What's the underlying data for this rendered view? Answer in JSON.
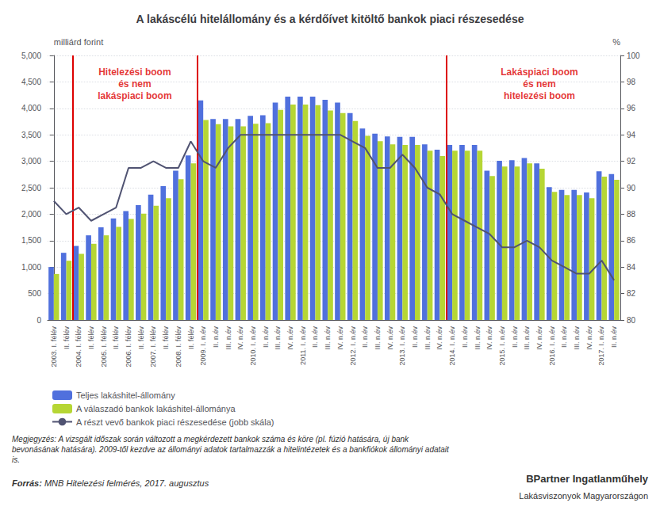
{
  "chart_data": {
    "type": "bar",
    "title": "A lakáscélú hitelállomány és a kérdőívet kitöltő bankok piaci részesedése",
    "y_label": "milliárd forint",
    "y2_label": "%",
    "categories": [
      "2003. I. félév",
      "II. félév",
      "2004. I. félév",
      "II. félév",
      "2005. I. félév",
      "II. félév",
      "2006. I. félév",
      "II. félév",
      "2007. I. félév",
      "II. félév",
      "2008. I. félév",
      "II. félév",
      "2009. I. n.év",
      "II. n.év",
      "III. n.év",
      "IV. n.év",
      "2010. I. n.év",
      "II. n.év",
      "III. n.év",
      "IV. n.év",
      "2011. I. n.év",
      "II. n.év",
      "III. n.év",
      "IV. n.év",
      "2012. I. n.év",
      "II. n.év",
      "III. n.év",
      "IV. n.év",
      "2013. I. n.év",
      "II. n.év",
      "III. n.év",
      "IV. n.év",
      "2014. I. n.év",
      "II. n.év",
      "III. n.év",
      "IV. n.év",
      "2015. I. n.év",
      "II. n.év",
      "III. n.év",
      "IV. n.év",
      "2016. I. n.év",
      "II. n.év",
      "III. n.év",
      "IV. n.év",
      "2017. I. n.év",
      "II. n.év"
    ],
    "series": [
      {
        "name": "Teljes lakáshitel-állomány",
        "type": "bar",
        "values": [
          1000,
          1270,
          1400,
          1600,
          1750,
          1920,
          2060,
          2170,
          2370,
          2530,
          2820,
          3110,
          4150,
          3800,
          3800,
          3800,
          3860,
          3870,
          4110,
          4220,
          4220,
          4220,
          4160,
          4110,
          3910,
          3620,
          3520,
          3470,
          3460,
          3460,
          3320,
          3220,
          3310,
          3310,
          3310,
          2820,
          3010,
          3020,
          3060,
          2960,
          2510,
          2460,
          2460,
          2410,
          2810,
          2760
        ]
      },
      {
        "name": "A válaszadó bankok lakáshitel-állománya",
        "type": "bar",
        "values": [
          870,
          1120,
          1250,
          1440,
          1600,
          1760,
          1910,
          2010,
          2160,
          2300,
          2660,
          2960,
          3780,
          3700,
          3660,
          3660,
          3710,
          3720,
          3970,
          4070,
          4070,
          4060,
          3960,
          3910,
          3760,
          3480,
          3380,
          3320,
          3310,
          3310,
          3200,
          3100,
          3200,
          3200,
          3200,
          2720,
          2900,
          2900,
          2960,
          2860,
          2420,
          2360,
          2360,
          2300,
          2710,
          2650
        ]
      },
      {
        "name": "A részt vevő bankok piaci részesedése (jobb skála)",
        "type": "line",
        "axis": "y2",
        "values": [
          89.0,
          88.0,
          88.5,
          87.5,
          88.0,
          88.5,
          91.5,
          91.5,
          92.0,
          91.5,
          91.5,
          93.5,
          92.0,
          91.5,
          93.0,
          94.0,
          94.0,
          94.0,
          94.0,
          94.0,
          94.0,
          94.0,
          94.0,
          94.0,
          93.5,
          93.0,
          91.5,
          91.5,
          92.5,
          91.5,
          90.0,
          89.5,
          88.0,
          87.5,
          87.0,
          86.5,
          85.5,
          85.5,
          86.0,
          85.5,
          84.5,
          84.0,
          83.5,
          83.5,
          84.5,
          83.0
        ]
      }
    ],
    "ylim": [
      0,
      5000
    ],
    "yticks": [
      0,
      500,
      1000,
      1500,
      2000,
      2500,
      3000,
      3500,
      4000,
      4500,
      5000
    ],
    "y2lim": [
      80,
      100
    ],
    "y2ticks": [
      80,
      82,
      84,
      86,
      88,
      90,
      92,
      94,
      96,
      98,
      100
    ],
    "grid": true,
    "legend": "bottom",
    "vlines": [
      {
        "x": 1.5,
        "color": "#dd0000"
      },
      {
        "x": 11.5,
        "color": "#dd0000"
      },
      {
        "x": 31.5,
        "color": "#dd0000"
      }
    ],
    "annotations": [
      {
        "text": "Hitelezési boom\nés nem\nlakáspiaci boom",
        "x": 6.5,
        "y": 4800,
        "color": "#dd0000"
      },
      {
        "text": "Lakáspiaci boom\nés nem\nhitelezési boom",
        "x": 39.0,
        "y": 4800,
        "color": "#dd0000"
      }
    ],
    "note": "Megjegyzés: A vizsgált időszak során változott a megkérdezett bankok száma és köre (pl. fúzió hatására, új bank\nbevonásának hatására). 2009-től kezdve az állományi adatok tartalmazzák a hitelintézetek és a bankfiókok állományi adatait\nis.",
    "source_label": "Forrás:",
    "source_text": " MNB Hitelezési felmérés, 2017. augusztus",
    "brand_top": "BPartner Ingatlanműhely",
    "brand_bottom": "Lakásviszonyok Magyarországon"
  }
}
